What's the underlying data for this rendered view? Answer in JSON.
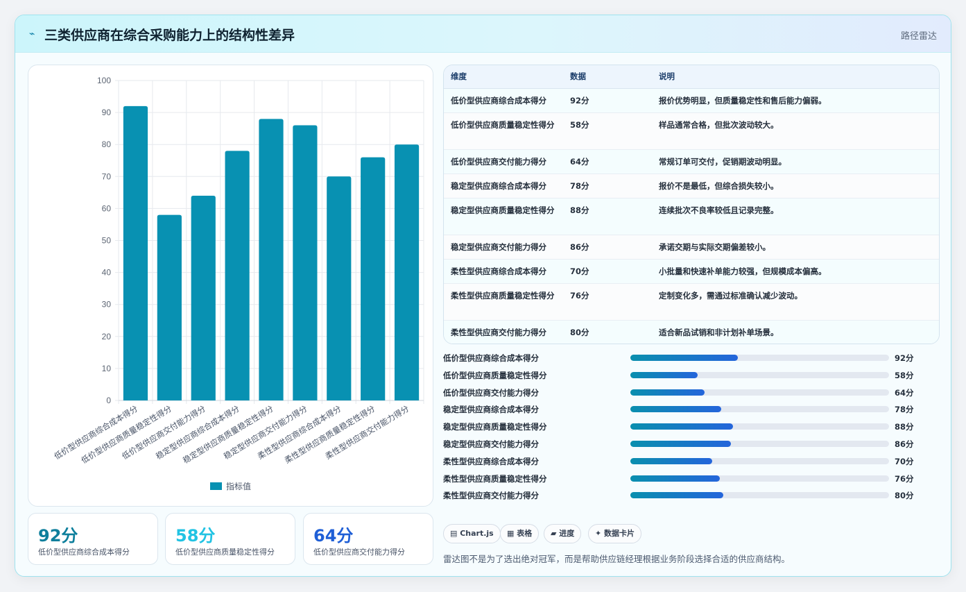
{
  "header": {
    "icon": "bolt-icon",
    "title": "三类供应商在综合采购能力上的结构性差异",
    "tag": "路径雷达"
  },
  "chart_data": {
    "type": "bar",
    "categories": [
      "低价型供应商综合成本得分",
      "低价型供应商质量稳定性得分",
      "低价型供应商交付能力得分",
      "稳定型供应商综合成本得分",
      "稳定型供应商质量稳定性得分",
      "稳定型供应商交付能力得分",
      "柔性型供应商综合成本得分",
      "柔性型供应商质量稳定性得分",
      "柔性型供应商交付能力得分"
    ],
    "series": [
      {
        "name": "指标值",
        "values": [
          92,
          58,
          64,
          78,
          88,
          86,
          70,
          76,
          80
        ]
      }
    ],
    "ylim": [
      0,
      100
    ],
    "yticks": [
      0,
      10,
      20,
      30,
      40,
      50,
      60,
      70,
      80,
      90,
      100
    ],
    "grid": true,
    "legend": "bottom",
    "bar_color": "#0891b2"
  },
  "kpis": [
    {
      "value": "92分",
      "label": "低价型供应商综合成本得分",
      "color": "#0e7f9c"
    },
    {
      "value": "58分",
      "label": "低价型供应商质量稳定性得分",
      "color": "#22c3e3"
    },
    {
      "value": "64分",
      "label": "低价型供应商交付能力得分",
      "color": "#1f5fd6"
    }
  ],
  "table": {
    "headers": [
      "维度",
      "数据",
      "说明"
    ],
    "rows": [
      {
        "dim": "低价型供应商综合成本得分",
        "value": "92分",
        "note": "报价优势明显，但质量稳定性和售后能力偏弱。"
      },
      {
        "dim": "低价型供应商质量稳定性得分",
        "value": "58分",
        "note": "样品通常合格，但批次波动较大。"
      },
      {
        "dim": "低价型供应商交付能力得分",
        "value": "64分",
        "note": "常规订单可交付，促销期波动明显。"
      },
      {
        "dim": "稳定型供应商综合成本得分",
        "value": "78分",
        "note": "报价不是最低，但综合损失较小。"
      },
      {
        "dim": "稳定型供应商质量稳定性得分",
        "value": "88分",
        "note": "连续批次不良率较低且记录完整。"
      },
      {
        "dim": "稳定型供应商交付能力得分",
        "value": "86分",
        "note": "承诺交期与实际交期偏差较小。"
      },
      {
        "dim": "柔性型供应商综合成本得分",
        "value": "70分",
        "note": "小批量和快速补单能力较强，但规模成本偏高。"
      },
      {
        "dim": "柔性型供应商质量稳定性得分",
        "value": "76分",
        "note": "定制变化多，需通过标准确认减少波动。"
      },
      {
        "dim": "柔性型供应商交付能力得分",
        "value": "80分",
        "note": "适合新品试销和非计划补单场景。"
      }
    ]
  },
  "progress": {
    "max": 100,
    "items": [
      {
        "label": "低价型供应商综合成本得分",
        "value": 92,
        "value_text": "92分",
        "fill_fraction": 0.415
      },
      {
        "label": "低价型供应商质量稳定性得分",
        "value": 58,
        "value_text": "58分",
        "fill_fraction": 0.26
      },
      {
        "label": "低价型供应商交付能力得分",
        "value": 64,
        "value_text": "64分",
        "fill_fraction": 0.288
      },
      {
        "label": "稳定型供应商综合成本得分",
        "value": 78,
        "value_text": "78分",
        "fill_fraction": 0.352
      },
      {
        "label": "稳定型供应商质量稳定性得分",
        "value": 88,
        "value_text": "88分",
        "fill_fraction": 0.397
      },
      {
        "label": "稳定型供应商交付能力得分",
        "value": 86,
        "value_text": "86分",
        "fill_fraction": 0.39
      },
      {
        "label": "柔性型供应商综合成本得分",
        "value": 70,
        "value_text": "70分",
        "fill_fraction": 0.317
      },
      {
        "label": "柔性型供应商质量稳定性得分",
        "value": 76,
        "value_text": "76分",
        "fill_fraction": 0.345
      },
      {
        "label": "柔性型供应商交付能力得分",
        "value": 80,
        "value_text": "80分",
        "fill_fraction": 0.36
      }
    ]
  },
  "chips": [
    {
      "icon": "chart-icon",
      "label": "▤ Chart.js"
    },
    {
      "icon": "table-icon",
      "label": "▦ 表格"
    },
    {
      "icon": "progress-icon",
      "label": "▰ 进度"
    },
    {
      "icon": "sparkle-icon",
      "label": "✦ 数据卡片"
    }
  ],
  "footer_note": "雷达图不是为了选出绝对冠军，而是帮助供应链经理根据业务阶段选择合适的供应商结构。"
}
